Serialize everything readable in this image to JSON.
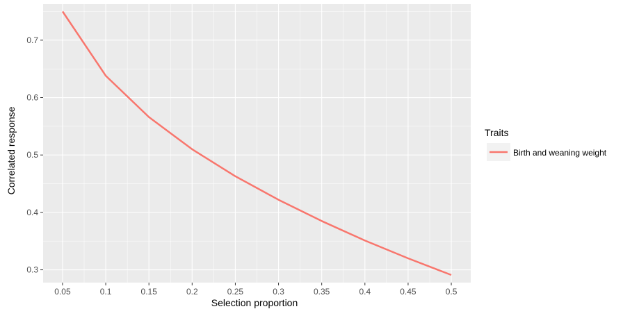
{
  "chart_data": {
    "type": "line",
    "xlabel": "Selection proportion",
    "ylabel": "Correlated response",
    "x": [
      0.05,
      0.1,
      0.15,
      0.2,
      0.25,
      0.3,
      0.35,
      0.4,
      0.45,
      0.5
    ],
    "x_tick_labels": [
      "0.05",
      "0.1",
      "0.15",
      "0.2",
      "0.25",
      "0.3",
      "0.35",
      "0.4",
      "0.45",
      "0.5"
    ],
    "y_ticks": [
      0.3,
      0.4,
      0.5,
      0.6,
      0.7
    ],
    "y_tick_labels": [
      "0.3",
      "0.4",
      "0.5",
      "0.6",
      "0.7"
    ],
    "xlim": [
      0.0275,
      0.5225
    ],
    "ylim": [
      0.2777,
      0.7627
    ],
    "grid": true,
    "legend_position": "right",
    "legend_title": "Traits",
    "series": [
      {
        "name": "Birth and weaning weight",
        "color": "#F8766D",
        "values": [
          0.75,
          0.638,
          0.566,
          0.51,
          0.463,
          0.422,
          0.385,
          0.351,
          0.32,
          0.291
        ]
      }
    ]
  }
}
